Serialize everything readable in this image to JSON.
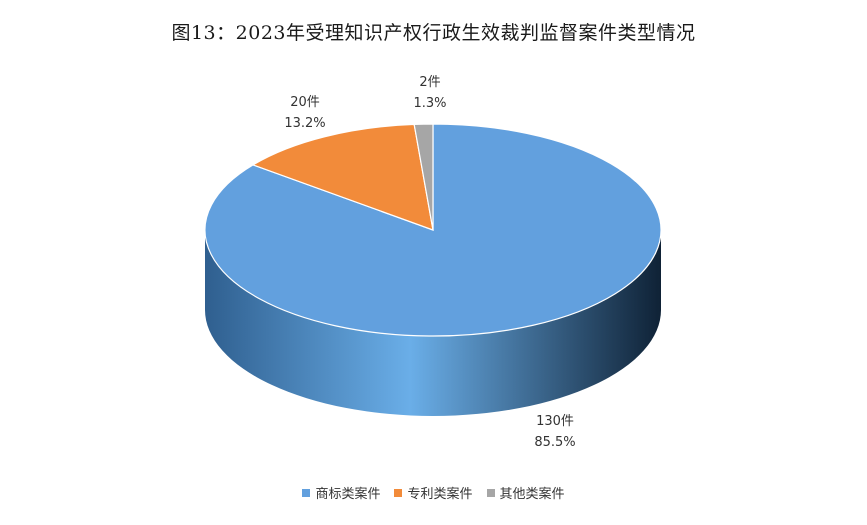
{
  "chart_data": {
    "type": "pie",
    "title": "图13：2023年受理知识产权行政生效裁判监督案件类型情况",
    "unit": "件",
    "slices": [
      {
        "name": "商标类案件",
        "value": 130,
        "percent_label": "85.5%",
        "count_label": "130件",
        "color": "#62A0DE"
      },
      {
        "name": "专利类案件",
        "value": 20,
        "percent_label": "13.2%",
        "count_label": "20件",
        "color": "#F28B3A"
      },
      {
        "name": "其他类案件",
        "value": 2,
        "percent_label": "1.3%",
        "count_label": "2件",
        "color": "#A6A6A6"
      }
    ],
    "legend_position": "bottom",
    "style": "3d"
  }
}
